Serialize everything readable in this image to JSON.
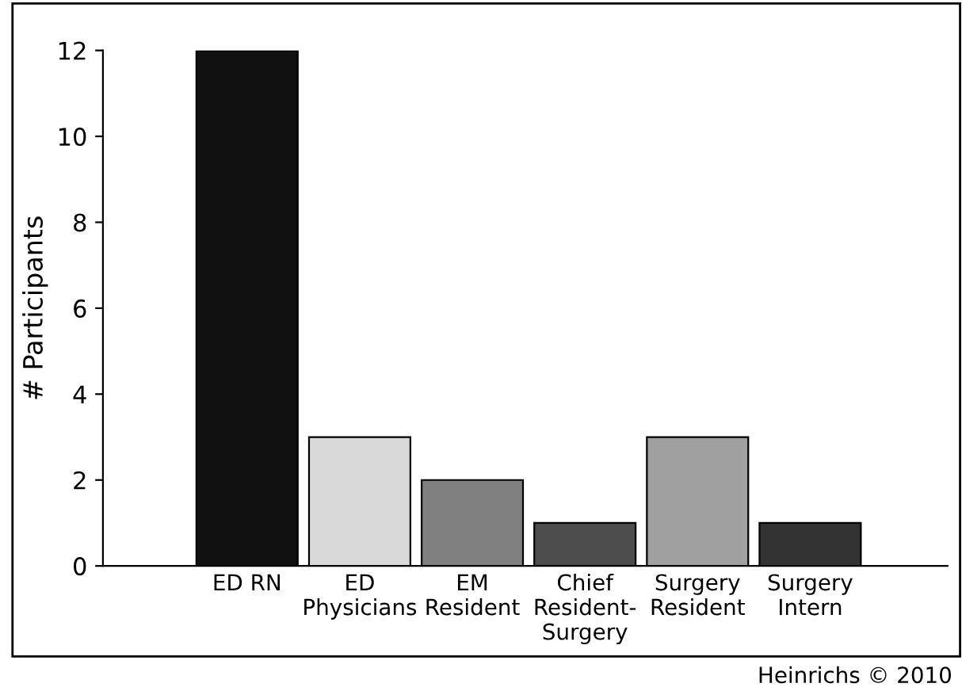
{
  "chart_data": {
    "type": "bar",
    "ylabel": "# Participants",
    "categories": [
      "ED RN",
      "ED\nPhysicians",
      "EM\nResident",
      "Chief\nResident-\nSurgery",
      "Surgery\nResident",
      "Surgery\nIntern"
    ],
    "values": [
      12,
      3,
      2,
      1,
      3,
      1
    ],
    "colors": [
      "#111111",
      "#d9d9d9",
      "#808080",
      "#4d4d4d",
      "#a0a0a0",
      "#333333"
    ],
    "ylim": [
      0,
      12
    ],
    "yticks": [
      0,
      2,
      4,
      6,
      8,
      10,
      12
    ],
    "grid": false,
    "legend": false,
    "annotations": [
      "Heinrichs © 2010"
    ]
  }
}
